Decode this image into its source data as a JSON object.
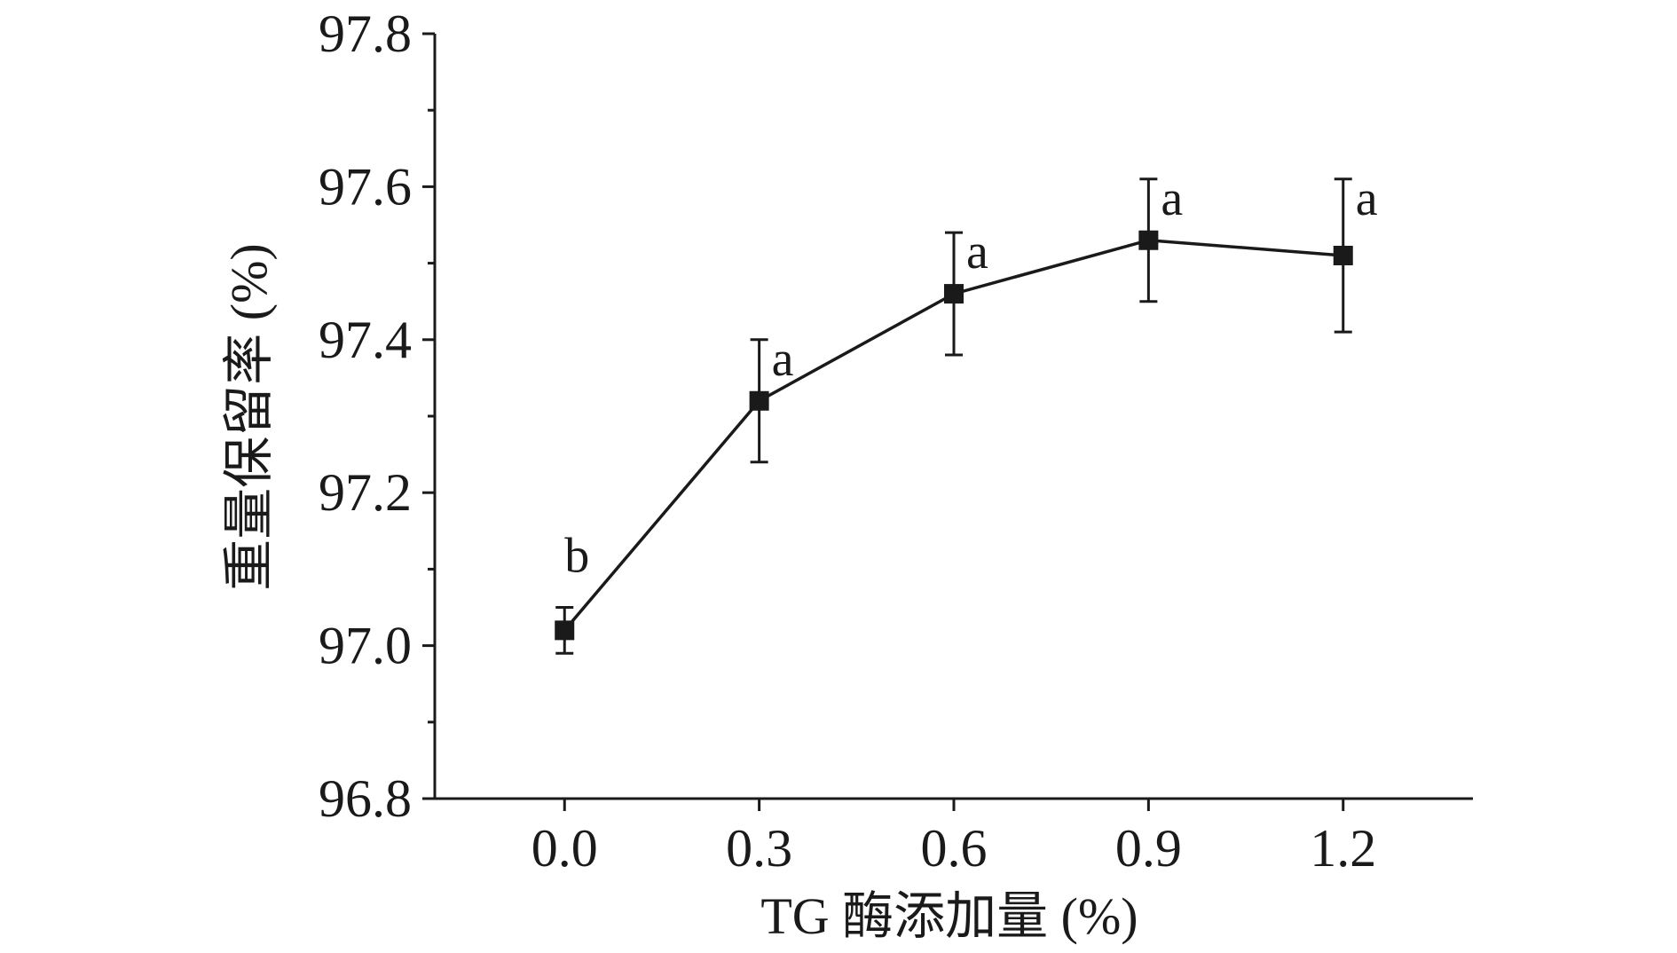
{
  "chart_data": {
    "type": "line",
    "xlabel": "TG 酶添加量 (%)",
    "ylabel": "重量保留率 (%)",
    "xlim": [
      -0.2,
      1.4
    ],
    "ylim": [
      96.8,
      97.8
    ],
    "x_ticks": [
      "0.0",
      "0.3",
      "0.6",
      "0.9",
      "1.2"
    ],
    "y_ticks": [
      "96.8",
      "97.0",
      "97.2",
      "97.4",
      "97.6",
      "97.8"
    ],
    "grid": false,
    "legend": "none",
    "series": [
      {
        "x": [
          0.0,
          0.3,
          0.6,
          0.9,
          1.2
        ],
        "y": [
          97.02,
          97.32,
          97.46,
          97.53,
          97.51
        ],
        "error": [
          0.03,
          0.08,
          0.08,
          0.08,
          0.1
        ],
        "labels": [
          "b",
          "a",
          "a",
          "a",
          "a"
        ],
        "color": "#1a1a1a",
        "marker": "square"
      }
    ]
  }
}
